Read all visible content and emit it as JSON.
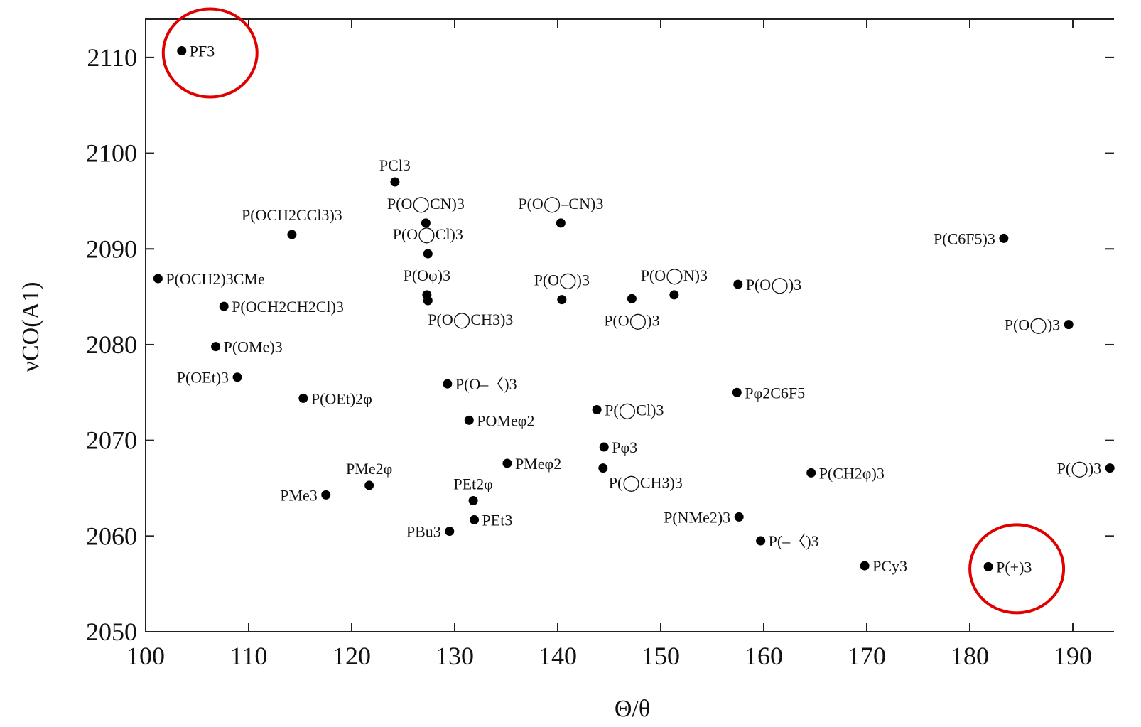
{
  "chart_data": {
    "type": "scatter",
    "xlabel": "Θ/θ",
    "ylabel": "νCO(A1)",
    "xlim": [
      100,
      194
    ],
    "ylim": [
      2050,
      2114
    ],
    "x_ticks": [
      100,
      110,
      120,
      130,
      140,
      150,
      160,
      170,
      180,
      190
    ],
    "y_ticks": [
      2050,
      2060,
      2070,
      2080,
      2090,
      2100,
      2110
    ],
    "grid": false,
    "legend": "none",
    "points": [
      {
        "x": 103.5,
        "y": 2110.7,
        "label": "PF3",
        "highlighted": true
      },
      {
        "x": 124.2,
        "y": 2097.0,
        "label": "PCl3"
      },
      {
        "x": 114.2,
        "y": 2091.5,
        "label": "P(OCH2CCl3)3"
      },
      {
        "x": 127.2,
        "y": 2092.7,
        "label": "P(O◯CN)3"
      },
      {
        "x": 127.4,
        "y": 2089.5,
        "label": "P(O◯Cl)3"
      },
      {
        "x": 140.3,
        "y": 2092.7,
        "label": "P(O◯–CN)3"
      },
      {
        "x": 183.3,
        "y": 2091.1,
        "label": "P(C6F5)3"
      },
      {
        "x": 101.2,
        "y": 2086.9,
        "label": "P(OCH2)3CMe"
      },
      {
        "x": 127.3,
        "y": 2085.2,
        "label": "P(Oφ)3"
      },
      {
        "x": 127.4,
        "y": 2084.6,
        "label": "P(O◯CH3)3"
      },
      {
        "x": 107.6,
        "y": 2084.0,
        "label": "P(OCH2CH2Cl)3"
      },
      {
        "x": 140.4,
        "y": 2084.7,
        "label": "P(O◯)3"
      },
      {
        "x": 147.2,
        "y": 2084.8,
        "label": "P(O◯)3"
      },
      {
        "x": 151.3,
        "y": 2085.2,
        "label": "P(O◯N)3"
      },
      {
        "x": 157.5,
        "y": 2086.3,
        "label": "P(O◯)3"
      },
      {
        "x": 189.6,
        "y": 2082.1,
        "label": "P(O◯)3"
      },
      {
        "x": 106.8,
        "y": 2079.8,
        "label": "P(OMe)3"
      },
      {
        "x": 108.9,
        "y": 2076.6,
        "label": "P(OEt)3"
      },
      {
        "x": 115.3,
        "y": 2074.4,
        "label": "P(OEt)2φ"
      },
      {
        "x": 129.3,
        "y": 2075.9,
        "label": "P(O–〈)3"
      },
      {
        "x": 157.4,
        "y": 2075.0,
        "label": "Pφ2C6F5"
      },
      {
        "x": 143.8,
        "y": 2073.2,
        "label": "P(◯Cl)3"
      },
      {
        "x": 131.4,
        "y": 2072.1,
        "label": "POMeφ2"
      },
      {
        "x": 144.5,
        "y": 2069.3,
        "label": "Pφ3"
      },
      {
        "x": 135.1,
        "y": 2067.6,
        "label": "PMeφ2"
      },
      {
        "x": 144.4,
        "y": 2067.1,
        "label": "P(◯CH3)3"
      },
      {
        "x": 164.6,
        "y": 2066.6,
        "label": "P(CH2φ)3"
      },
      {
        "x": 193.6,
        "y": 2067.1,
        "label": "P(◯)3"
      },
      {
        "x": 121.7,
        "y": 2065.3,
        "label": "PMe2φ"
      },
      {
        "x": 117.5,
        "y": 2064.3,
        "label": "PMe3"
      },
      {
        "x": 131.8,
        "y": 2063.7,
        "label": "PEt2φ"
      },
      {
        "x": 131.9,
        "y": 2061.7,
        "label": "PEt3"
      },
      {
        "x": 157.6,
        "y": 2062.0,
        "label": "P(NMe2)3"
      },
      {
        "x": 129.5,
        "y": 2060.5,
        "label": "PBu3"
      },
      {
        "x": 159.7,
        "y": 2059.5,
        "label": "P(–〈)3"
      },
      {
        "x": 169.8,
        "y": 2056.9,
        "label": "PCy3"
      },
      {
        "x": 181.8,
        "y": 2056.8,
        "label": "P(+)3",
        "highlighted": true
      }
    ]
  }
}
